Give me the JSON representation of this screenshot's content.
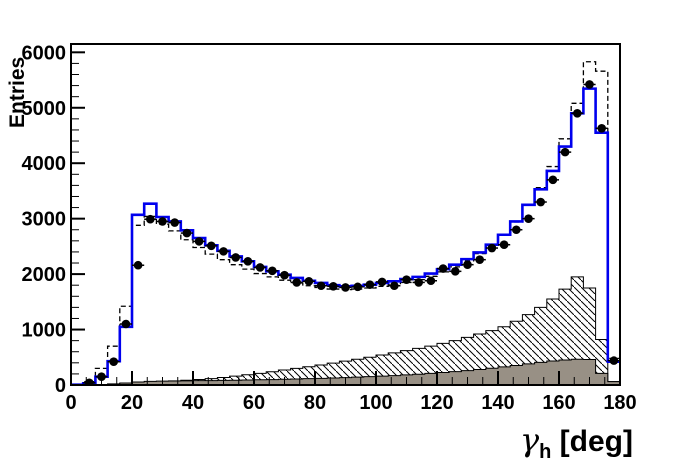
{
  "axes": {
    "x": {
      "title_symbol": "γ",
      "title_subscript": "h",
      "title_unit": " [deg]",
      "ticks": [
        0,
        20,
        40,
        60,
        80,
        100,
        120,
        140,
        160,
        180
      ],
      "minor_step": 5,
      "lim": [
        0,
        180
      ]
    },
    "y": {
      "title": "Entries",
      "ticks": [
        0,
        1000,
        2000,
        3000,
        4000,
        5000,
        6000
      ],
      "minor_step": 200,
      "lim": [
        0,
        6150
      ]
    }
  },
  "colors": {
    "solid_histogram": "#0000ee",
    "dashed_histogram": "#000000",
    "hatch_lines": "#000000",
    "gray_fill": "#989085",
    "frame": "#000000",
    "background": "#ffffff",
    "marker": "#000000"
  },
  "chart_data": {
    "type": "bar",
    "subtype": "overlaid-step-histograms-root-style",
    "title": "",
    "xlabel": "gamma_h [deg]",
    "ylabel": "Entries",
    "xlim": [
      0,
      180
    ],
    "ylim": [
      0,
      6150
    ],
    "grid": false,
    "legend": "none",
    "bin_width_deg": 4,
    "bin_centers": [
      2,
      6,
      10,
      14,
      18,
      22,
      26,
      30,
      34,
      38,
      42,
      46,
      50,
      54,
      58,
      62,
      66,
      70,
      74,
      78,
      82,
      86,
      90,
      94,
      98,
      102,
      106,
      110,
      114,
      118,
      122,
      126,
      130,
      134,
      138,
      142,
      146,
      150,
      154,
      158,
      162,
      166,
      170,
      174,
      178
    ],
    "series": [
      {
        "name": "blue solid-line histogram",
        "style": "step-line-solid",
        "values": [
          5,
          30,
          150,
          430,
          1050,
          3070,
          3270,
          3030,
          2950,
          2790,
          2650,
          2520,
          2420,
          2320,
          2230,
          2130,
          2050,
          1990,
          1930,
          1880,
          1840,
          1800,
          1780,
          1790,
          1810,
          1840,
          1870,
          1910,
          1950,
          2010,
          2090,
          2170,
          2270,
          2390,
          2530,
          2710,
          2950,
          3250,
          3530,
          3860,
          4300,
          4900,
          5345,
          4550,
          420
        ]
      },
      {
        "name": "black dashed-line histogram",
        "style": "step-line-dashed",
        "values": [
          10,
          60,
          300,
          700,
          1420,
          2880,
          3040,
          2900,
          2780,
          2620,
          2480,
          2360,
          2260,
          2170,
          2090,
          2010,
          1950,
          1890,
          1840,
          1790,
          1760,
          1730,
          1720,
          1730,
          1750,
          1780,
          1810,
          1850,
          1900,
          1960,
          2040,
          2130,
          2240,
          2370,
          2520,
          2700,
          2940,
          3260,
          3560,
          3940,
          4440,
          5080,
          5830,
          5660,
          480
        ]
      },
      {
        "name": "hatched filled histogram",
        "style": "step-filled-hatched",
        "values": [
          0,
          0,
          5,
          15,
          30,
          45,
          55,
          65,
          75,
          85,
          100,
          115,
          135,
          160,
          185,
          210,
          240,
          270,
          300,
          330,
          360,
          395,
          430,
          465,
          500,
          540,
          580,
          620,
          660,
          700,
          750,
          800,
          860,
          920,
          980,
          1050,
          1150,
          1270,
          1400,
          1550,
          1730,
          1950,
          1750,
          820,
          60
        ]
      },
      {
        "name": "gray solid-filled histogram",
        "style": "step-filled-solid",
        "values": [
          0,
          5,
          10,
          20,
          35,
          55,
          65,
          70,
          72,
          75,
          78,
          80,
          83,
          86,
          90,
          94,
          98,
          103,
          108,
          114,
          120,
          127,
          134,
          142,
          150,
          160,
          170,
          182,
          195,
          210,
          225,
          242,
          260,
          280,
          302,
          326,
          352,
          380,
          408,
          432,
          452,
          465,
          460,
          210,
          60
        ]
      },
      {
        "name": "black circle data points",
        "style": "markers-filled-circles",
        "values": [
          null,
          40,
          150,
          420,
          1100,
          2160,
          2990,
          2950,
          2930,
          2740,
          2590,
          2510,
          2410,
          2300,
          2230,
          2120,
          2060,
          1980,
          1850,
          1870,
          1790,
          1780,
          1760,
          1770,
          1810,
          1860,
          1790,
          1900,
          1850,
          1880,
          2100,
          2050,
          2170,
          2260,
          2470,
          2530,
          2800,
          3000,
          3300,
          3700,
          4200,
          4900,
          5420,
          4630,
          440
        ]
      }
    ]
  }
}
